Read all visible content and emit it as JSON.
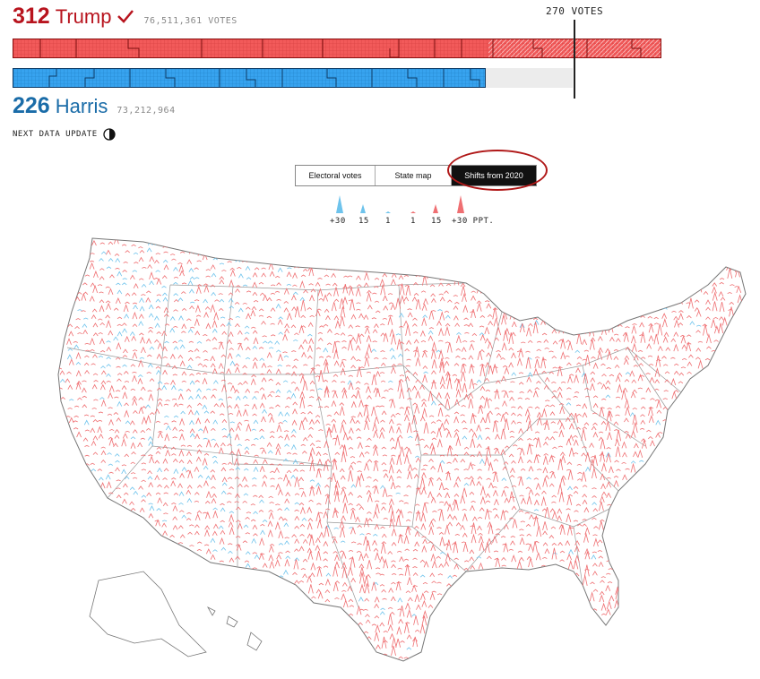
{
  "trump": {
    "ev": "312",
    "name": "Trump",
    "votes": "76,511,361 VOTES",
    "color": "#f25a5a",
    "text_color": "#b8141e",
    "ev_value": 312
  },
  "harris": {
    "ev": "226",
    "name": "Harris",
    "votes": "73,212,964",
    "color": "#37a3ef",
    "text_color": "#1a6ca8",
    "ev_value": 226
  },
  "threshold": {
    "label": "270 VOTES",
    "value": 270
  },
  "update": {
    "label": "NEXT DATA UPDATE"
  },
  "tabs": [
    {
      "label": "Electoral votes",
      "active": false
    },
    {
      "label": "State map",
      "active": false
    },
    {
      "label": "Shifts from 2020",
      "active": true
    }
  ],
  "legend": {
    "items": [
      "+30",
      "15",
      "1",
      "1",
      "15",
      "+30 PPT."
    ],
    "colors": {
      "dem": "#6ec3ec",
      "rep": "#ef6f72"
    }
  },
  "icons": {
    "check": "check-icon",
    "clock": "pie-clock-icon"
  }
}
